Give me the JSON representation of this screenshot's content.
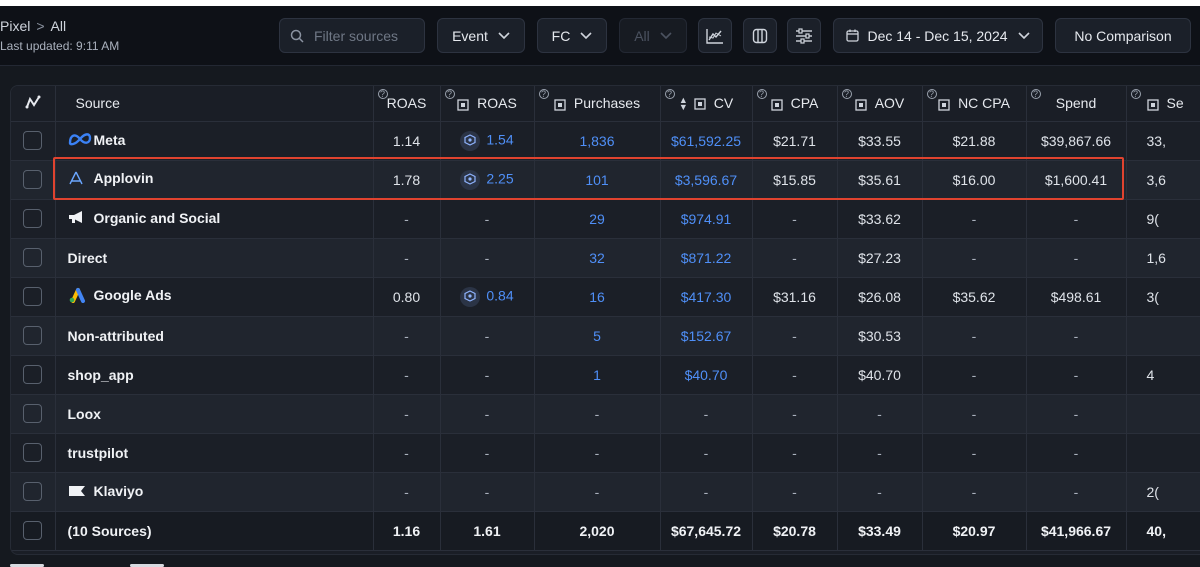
{
  "header": {
    "breadcrumb_root": "Pixel",
    "breadcrumb_sep": ">",
    "breadcrumb_current": "All",
    "last_updated": "Last updated: 9:11 AM"
  },
  "toolbar": {
    "search_placeholder": "Filter sources",
    "event_label": "Event",
    "fc_label": "FC",
    "all_label": "All",
    "date_range": "Dec 14 - Dec 15, 2024",
    "comparison_label": "No Comparison"
  },
  "table": {
    "columns": [
      "Source",
      "ROAS",
      "ROAS",
      "Purchases",
      "CV",
      "CPA",
      "AOV",
      "NC CPA",
      "Spend",
      "Se"
    ],
    "rows": [
      {
        "source": "Meta",
        "icon": "meta-icon",
        "roas": "1.14",
        "roas2": "1.54",
        "purchases": "1,836",
        "cv": "$61,592.25",
        "cpa": "$21.71",
        "aov": "$33.55",
        "nccpa": "$21.88",
        "spend": "$39,867.66",
        "se": "33,"
      },
      {
        "source": "Applovin",
        "icon": "applovin-icon",
        "roas": "1.78",
        "roas2": "2.25",
        "purchases": "101",
        "cv": "$3,596.67",
        "cpa": "$15.85",
        "aov": "$35.61",
        "nccpa": "$16.00",
        "spend": "$1,600.41",
        "se": "3,6"
      },
      {
        "source": "Organic and Social",
        "icon": "megaphone-icon",
        "roas": "-",
        "roas2": "-",
        "purchases": "29",
        "cv": "$974.91",
        "cpa": "-",
        "aov": "$33.62",
        "nccpa": "-",
        "spend": "-",
        "se": "9("
      },
      {
        "source": "Direct",
        "icon": "",
        "roas": "-",
        "roas2": "-",
        "purchases": "32",
        "cv": "$871.22",
        "cpa": "-",
        "aov": "$27.23",
        "nccpa": "-",
        "spend": "-",
        "se": "1,6"
      },
      {
        "source": "Google Ads",
        "icon": "google-ads-icon",
        "roas": "0.80",
        "roas2": "0.84",
        "purchases": "16",
        "cv": "$417.30",
        "cpa": "$31.16",
        "aov": "$26.08",
        "nccpa": "$35.62",
        "spend": "$498.61",
        "se": "3("
      },
      {
        "source": "Non-attributed",
        "icon": "",
        "roas": "-",
        "roas2": "-",
        "purchases": "5",
        "cv": "$152.67",
        "cpa": "-",
        "aov": "$30.53",
        "nccpa": "-",
        "spend": "-",
        "se": ""
      },
      {
        "source": "shop_app",
        "icon": "",
        "roas": "-",
        "roas2": "-",
        "purchases": "1",
        "cv": "$40.70",
        "cpa": "-",
        "aov": "$40.70",
        "nccpa": "-",
        "spend": "-",
        "se": "4"
      },
      {
        "source": "Loox",
        "icon": "",
        "roas": "-",
        "roas2": "-",
        "purchases": "-",
        "cv": "-",
        "cpa": "-",
        "aov": "-",
        "nccpa": "-",
        "spend": "-",
        "se": ""
      },
      {
        "source": "trustpilot",
        "icon": "",
        "roas": "-",
        "roas2": "-",
        "purchases": "-",
        "cv": "-",
        "cpa": "-",
        "aov": "-",
        "nccpa": "-",
        "spend": "-",
        "se": ""
      },
      {
        "source": "Klaviyo",
        "icon": "klaviyo-icon",
        "roas": "-",
        "roas2": "-",
        "purchases": "-",
        "cv": "-",
        "cpa": "-",
        "aov": "-",
        "nccpa": "-",
        "spend": "-",
        "se": "2("
      }
    ],
    "total": {
      "source": "(10 Sources)",
      "roas": "1.16",
      "roas2": "1.61",
      "purchases": "2,020",
      "cv": "$67,645.72",
      "cpa": "$20.78",
      "aov": "$33.49",
      "nccpa": "$20.97",
      "spend": "$41,966.67",
      "se": "40,"
    }
  },
  "colors": {
    "link": "#4f8ff7",
    "highlight": "#e0432f",
    "meta": "#3b82f6"
  }
}
